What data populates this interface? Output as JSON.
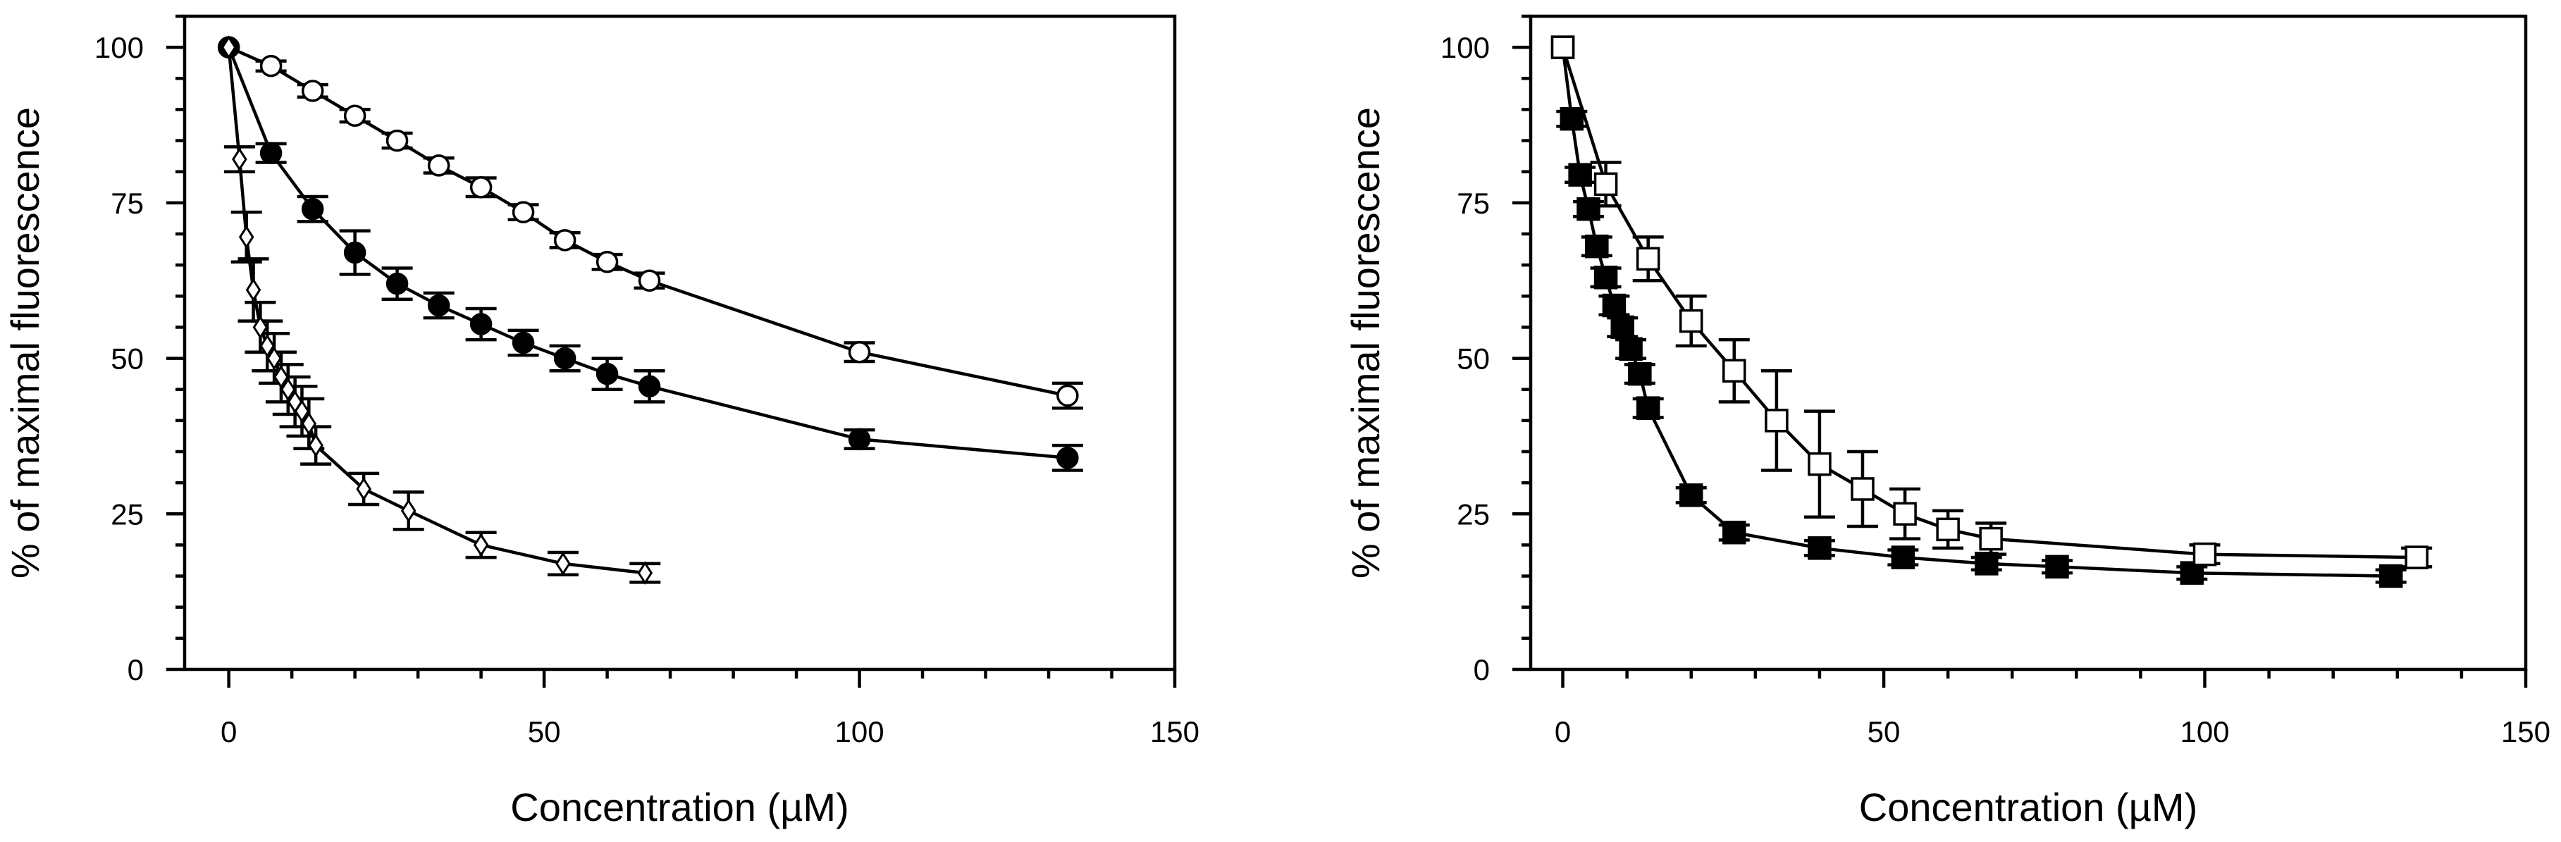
{
  "chart_data": [
    {
      "type": "line",
      "panel": "left",
      "xlabel": "Concentration (µM)",
      "ylabel": "% of maximal fluorescence",
      "xlim": [
        -7,
        150
      ],
      "ylim": [
        0,
        105
      ],
      "xticks": [
        0,
        50,
        100,
        150
      ],
      "xtick_labels": [
        "0",
        "50",
        "100",
        "150"
      ],
      "yticks": [
        0,
        25,
        50,
        75,
        100
      ],
      "ytick_labels": [
        "0",
        "25",
        "50",
        "75",
        "100"
      ],
      "x_minor_step": 10,
      "y_minor_step": 5,
      "grid": false,
      "series": [
        {
          "name": "open-circles",
          "marker": "circle",
          "fill": "open",
          "x": [
            0,
            6.7,
            13.3,
            20,
            26.7,
            33.3,
            40,
            46.7,
            53.3,
            60,
            66.7,
            100,
            133
          ],
          "y": [
            100,
            97,
            93,
            89,
            85,
            81,
            77.5,
            73.5,
            69,
            65.5,
            62.5,
            51,
            44
          ],
          "err": [
            0,
            0.8,
            1,
            1,
            1.2,
            1.2,
            1.5,
            1.2,
            1.2,
            1.2,
            1.2,
            1.5,
            2
          ]
        },
        {
          "name": "filled-circles",
          "marker": "circle",
          "fill": "filled",
          "x": [
            0,
            6.7,
            13.3,
            20,
            26.7,
            33.3,
            40,
            46.7,
            53.3,
            60,
            66.7,
            100,
            133
          ],
          "y": [
            100,
            83,
            74,
            67,
            62,
            58.5,
            55.5,
            52.5,
            50,
            47.5,
            45.5,
            37,
            34
          ],
          "err": [
            0,
            1.5,
            2,
            3.5,
            2.5,
            2,
            2.5,
            2,
            2,
            2.5,
            2.5,
            1.5,
            2
          ]
        },
        {
          "name": "open-diamonds",
          "marker": "diamond",
          "fill": "open",
          "x": [
            0,
            1.7,
            2.8,
            3.9,
            5,
            6.1,
            7.2,
            8.3,
            9.4,
            10.5,
            11.6,
            12.7,
            13.8,
            21.4,
            28.5,
            40,
            53,
            66
          ],
          "y": [
            100,
            82,
            69.5,
            61,
            55,
            52,
            50,
            47,
            45,
            43,
            41.5,
            39.5,
            36,
            29,
            25.5,
            20,
            17,
            15.5
          ],
          "err": [
            0,
            2,
            4,
            5,
            4,
            4,
            4,
            4,
            4,
            4,
            4,
            4,
            3,
            2.5,
            3,
            2,
            1.8,
            1.5
          ]
        }
      ]
    },
    {
      "type": "line",
      "panel": "right",
      "xlabel": "Concentration (µM)",
      "ylabel": "% of maximal fluorescence",
      "xlim": [
        -5,
        150
      ],
      "ylim": [
        0,
        105
      ],
      "xticks": [
        0,
        50,
        100,
        150
      ],
      "xtick_labels": [
        "0",
        "50",
        "100",
        "150"
      ],
      "yticks": [
        0,
        25,
        50,
        75,
        100
      ],
      "ytick_labels": [
        "0",
        "25",
        "50",
        "75",
        "100"
      ],
      "x_minor_step": 10,
      "y_minor_step": 5,
      "grid": false,
      "series": [
        {
          "name": "filled-squares",
          "marker": "square",
          "fill": "filled",
          "x": [
            0,
            1.4,
            2.7,
            4,
            5.3,
            6.7,
            8,
            9.3,
            10.6,
            12,
            13.3,
            20,
            26.7,
            40,
            53,
            66,
            77,
            98,
            129
          ],
          "y": [
            100,
            88.5,
            79.5,
            74,
            68,
            63,
            58.5,
            55,
            51.5,
            47.5,
            42,
            28,
            22,
            19.5,
            18,
            17,
            16.5,
            15.5,
            15
          ],
          "err": [
            0,
            1.2,
            1.2,
            1.2,
            1.5,
            1.5,
            1.5,
            1.5,
            1.5,
            1.5,
            1.5,
            1.2,
            1.2,
            1.2,
            1.2,
            1,
            1,
            1,
            1
          ]
        },
        {
          "name": "open-squares",
          "marker": "square",
          "fill": "open",
          "x": [
            0,
            6.7,
            13.3,
            20,
            26.7,
            33.3,
            40,
            46.7,
            53.3,
            60,
            66.7,
            100,
            133
          ],
          "y": [
            100,
            78,
            66,
            56,
            48,
            40,
            33,
            29,
            25,
            22.5,
            21,
            18.5,
            18
          ],
          "err": [
            0,
            3.5,
            3.5,
            4,
            5,
            8,
            8.5,
            6,
            4,
            3,
            2.5,
            1.5,
            1.5
          ]
        }
      ]
    }
  ]
}
